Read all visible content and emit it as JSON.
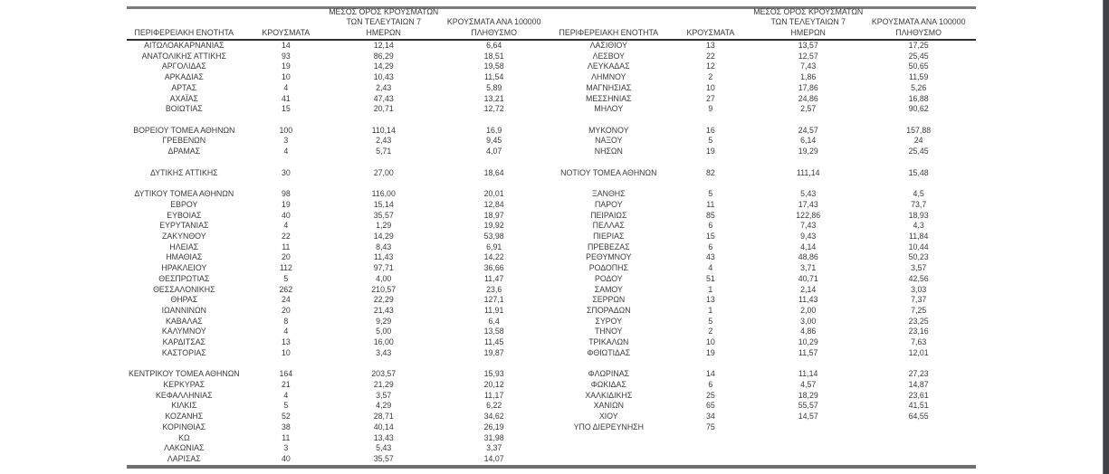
{
  "colors": {
    "text-color": "#3a3a3a",
    "top-rule": "#7b7b7b",
    "header-rule": "#2f2f2f",
    "bottom-rule": "#6f6f6f",
    "edge-bar": "#3f4347",
    "bg": "#ffffff"
  },
  "header": {
    "region": "ΠΕΡΙΦΕΡΕΙΑΚΗ ΕΝΟΤΗΤΑ",
    "cases": "ΚΡΟΥΣΜΑΤΑ",
    "avg7_line1": "ΜΕΣΟΣ ΟΡΟΣ ΚΡΟΥΣΜΑΤΩΝ",
    "avg7_line2": "ΤΩΝ ΤΕΛΕΥΤΑΙΩΝ 7",
    "avg7_line3": "ΗΜΕΡΩΝ",
    "per100k_line1": "ΚΡΟΥΣΜΑΤΑ ΑΝΑ 100000",
    "per100k_line2": "ΠΛΗΘΥΣΜΟ"
  },
  "tables": {
    "left": {
      "rows": [
        [
          "ΑΙΤΩΛΟΑΚΑΡΝΑΝΙΑΣ",
          "14",
          "12,14",
          "6,64"
        ],
        [
          "ΑΝΑΤΟΛΙΚΗΣ ΑΤΤΙΚΗΣ",
          "93",
          "86,29",
          "18,51"
        ],
        [
          "ΑΡΓΟΛΙΔΑΣ",
          "19",
          "14,29",
          "19,58"
        ],
        [
          "ΑΡΚΑΔΙΑΣ",
          "10",
          "10,43",
          "11,54"
        ],
        [
          "ΑΡΤΑΣ",
          "4",
          "2,43",
          "5,89"
        ],
        [
          "ΑΧΑΪΑΣ",
          "41",
          "47,43",
          "13,21"
        ],
        [
          "ΒΟΙΩΤΙΑΣ",
          "15",
          "20,71",
          "12,72"
        ],
        null,
        [
          "ΒΟΡΕΙΟΥ ΤΟΜΕΑ ΑΘΗΝΩΝ",
          "100",
          "110,14",
          "16,9"
        ],
        [
          "ΓΡΕΒΕΝΩΝ",
          "3",
          "2,43",
          "9,45"
        ],
        [
          "ΔΡΑΜΑΣ",
          "4",
          "5,71",
          "4,07"
        ],
        null,
        [
          "ΔΥΤΙΚΗΣ ΑΤΤΙΚΗΣ",
          "30",
          "27,00",
          "18,64"
        ],
        null,
        [
          "ΔΥΤΙΚΟΥ ΤΟΜΕΑ ΑΘΗΝΩΝ",
          "98",
          "116,00",
          "20,01"
        ],
        [
          "ΕΒΡΟΥ",
          "19",
          "15,14",
          "12,84"
        ],
        [
          "ΕΥΒΟΙΑΣ",
          "40",
          "35,57",
          "18,97"
        ],
        [
          "ΕΥΡΥΤΑΝΙΑΣ",
          "4",
          "1,29",
          "19,92"
        ],
        [
          "ΖΑΚΥΝΘΟΥ",
          "22",
          "14,29",
          "53,98"
        ],
        [
          "ΗΛΕΙΑΣ",
          "11",
          "8,43",
          "6,91"
        ],
        [
          "ΗΜΑΘΙΑΣ",
          "20",
          "11,43",
          "14,22"
        ],
        [
          "ΗΡΑΚΛΕΙΟΥ",
          "112",
          "97,71",
          "36,66"
        ],
        [
          "ΘΕΣΠΡΩΤΙΑΣ",
          "5",
          "4,00",
          "11,47"
        ],
        [
          "ΘΕΣΣΑΛΟΝΙΚΗΣ",
          "262",
          "210,57",
          "23,6"
        ],
        [
          "ΘΗΡΑΣ",
          "24",
          "22,29",
          "127,1"
        ],
        [
          "ΙΩΑΝΝΙΝΩΝ",
          "20",
          "21,43",
          "11,91"
        ],
        [
          "ΚΑΒΑΛΑΣ",
          "8",
          "9,29",
          "6,4"
        ],
        [
          "ΚΑΛΥΜΝΟΥ",
          "4",
          "5,00",
          "13,58"
        ],
        [
          "ΚΑΡΔΙΤΣΑΣ",
          "13",
          "16,00",
          "11,45"
        ],
        [
          "ΚΑΣΤΟΡΙΑΣ",
          "10",
          "3,43",
          "19,87"
        ],
        null,
        [
          "ΚΕΝΤΡΙΚΟΥ ΤΟΜΕΑ ΑΘΗΝΩΝ",
          "164",
          "203,57",
          "15,93"
        ],
        [
          "ΚΕΡΚΥΡΑΣ",
          "21",
          "21,29",
          "20,12"
        ],
        [
          "ΚΕΦΑΛΛΗΝΙΑΣ",
          "4",
          "3,57",
          "11,17"
        ],
        [
          "ΚΙΛΚΙΣ",
          "5",
          "4,29",
          "6,22"
        ],
        [
          "ΚΟΖΑΝΗΣ",
          "52",
          "28,71",
          "34,62"
        ],
        [
          "ΚΟΡΙΝΘΙΑΣ",
          "38",
          "40,14",
          "26,19"
        ],
        [
          "ΚΩ",
          "11",
          "13,43",
          "31,98"
        ],
        [
          "ΛΑΚΩΝΙΑΣ",
          "3",
          "5,43",
          "3,37"
        ],
        [
          "ΛΑΡΙΣΑΣ",
          "40",
          "35,57",
          "14,07"
        ]
      ]
    },
    "right": {
      "rows": [
        [
          "ΛΑΣΙΘΙΟΥ",
          "13",
          "13,57",
          "17,25"
        ],
        [
          "ΛΕΣΒΟΥ",
          "22",
          "12,57",
          "25,45"
        ],
        [
          "ΛΕΥΚΑΔΑΣ",
          "12",
          "7,43",
          "50,65"
        ],
        [
          "ΛΗΜΝΟΥ",
          "2",
          "1,86",
          "11,59"
        ],
        [
          "ΜΑΓΝΗΣΙΑΣ",
          "10",
          "17,86",
          "5,26"
        ],
        [
          "ΜΕΣΣΗΝΙΑΣ",
          "27",
          "24,86",
          "16,88"
        ],
        [
          "ΜΗΛΟΥ",
          "9",
          "2,57",
          "90,62"
        ],
        null,
        [
          "ΜΥΚΟΝΟΥ",
          "16",
          "24,57",
          "157,88"
        ],
        [
          "ΝΑΞΟΥ",
          "5",
          "6,14",
          "24"
        ],
        [
          "ΝΗΣΩΝ",
          "19",
          "19,29",
          "25,45"
        ],
        null,
        [
          "ΝΟΤΙΟΥ ΤΟΜΕΑ ΑΘΗΝΩΝ",
          "82",
          "111,14",
          "15,48"
        ],
        null,
        [
          "ΞΑΝΘΗΣ",
          "5",
          "5,43",
          "4,5"
        ],
        [
          "ΠΑΡΟΥ",
          "11",
          "17,43",
          "73,7"
        ],
        [
          "ΠΕΙΡΑΙΩΣ",
          "85",
          "122,86",
          "18,93"
        ],
        [
          "ΠΕΛΛΑΣ",
          "6",
          "7,43",
          "4,3"
        ],
        [
          "ΠΙΕΡΙΑΣ",
          "15",
          "9,43",
          "11,84"
        ],
        [
          "ΠΡΕΒΕΖΑΣ",
          "6",
          "4,14",
          "10,44"
        ],
        [
          "ΡΕΘΥΜΝΟΥ",
          "43",
          "48,86",
          "50,23"
        ],
        [
          "ΡΟΔΟΠΗΣ",
          "4",
          "3,71",
          "3,57"
        ],
        [
          "ΡΟΔΟΥ",
          "51",
          "40,71",
          "42,56"
        ],
        [
          "ΣΑΜΟΥ",
          "1",
          "2,14",
          "3,03"
        ],
        [
          "ΣΕΡΡΩΝ",
          "13",
          "11,43",
          "7,37"
        ],
        [
          "ΣΠΟΡΑΔΩΝ",
          "1",
          "2,00",
          "7,25"
        ],
        [
          "ΣΥΡΟΥ",
          "5",
          "3,00",
          "23,25"
        ],
        [
          "ΤΗΝΟΥ",
          "2",
          "4,86",
          "23,16"
        ],
        [
          "ΤΡΙΚΑΛΩΝ",
          "10",
          "10,29",
          "7,63"
        ],
        [
          "ΦΘΙΩΤΙΔΑΣ",
          "19",
          "11,57",
          "12,01"
        ],
        null,
        [
          "ΦΛΩΡΙΝΑΣ",
          "14",
          "11,14",
          "27,23"
        ],
        [
          "ΦΩΚΙΔΑΣ",
          "6",
          "4,57",
          "14,87"
        ],
        [
          "ΧΑΛΚΙΔΙΚΗΣ",
          "25",
          "18,29",
          "23,61"
        ],
        [
          "ΧΑΝΙΩΝ",
          "65",
          "55,57",
          "41,51"
        ],
        [
          "ΧΙΟΥ",
          "34",
          "14,57",
          "64,55"
        ],
        [
          "ΥΠΟ ΔΙΕΡΕΥΝΗΣΗ",
          "75",
          "",
          ""
        ],
        null,
        null,
        null
      ]
    }
  }
}
